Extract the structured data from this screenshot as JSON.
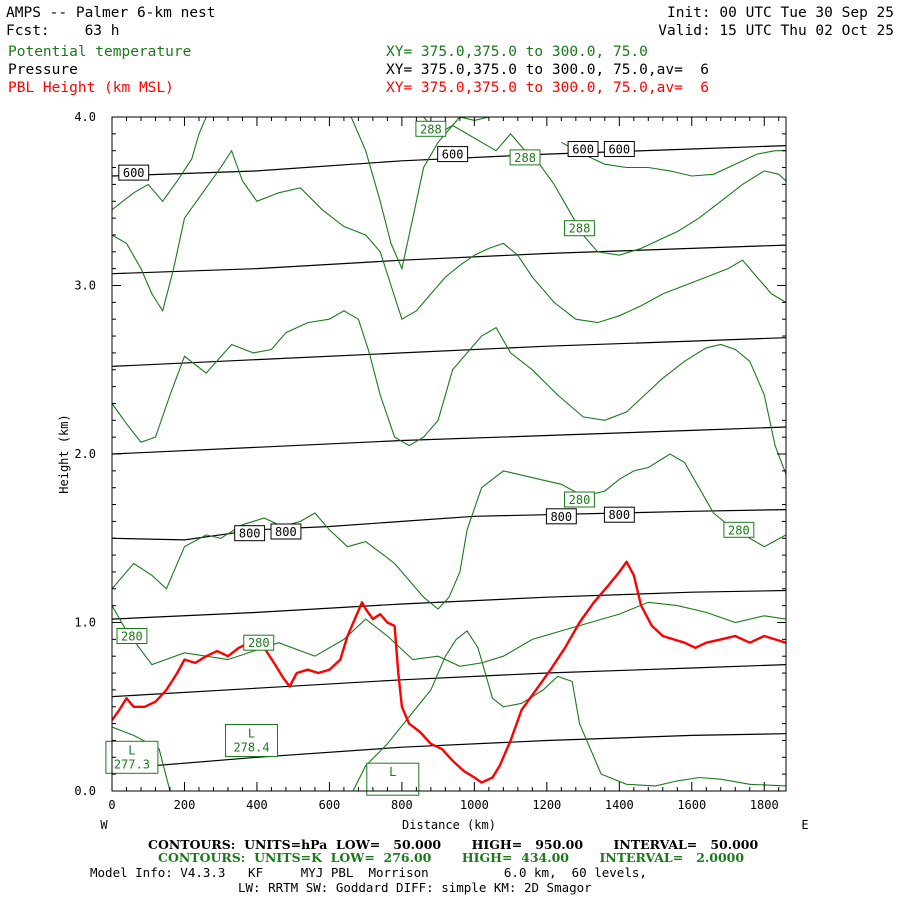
{
  "header": {
    "model_line": "AMPS -- Palmer 6-km nest",
    "init_line": "Init: 00 UTC Tue 30 Sep 25",
    "fcst_line": "Fcst:    63 h",
    "valid_line": "Valid: 15 UTC Thu 02 Oct 25",
    "fields": [
      {
        "name": "Potential temperature",
        "xy": "XY= 375.0,375.0 to 300.0, 75.0",
        "color": "#1a7a1a"
      },
      {
        "name": "Pressure",
        "xy": "XY= 375.0,375.0 to 300.0, 75.0,av=  6",
        "color": "#000000"
      },
      {
        "name": "PBL Height (km MSL)",
        "xy": "XY= 375.0,375.0 to 300.0, 75.0,av=  6",
        "color": "#ff0000"
      }
    ]
  },
  "footer": {
    "contours_pressure": "CONTOURS:  UNITS=hPa  LOW=   50.000       HIGH=   950.00       INTERVAL=   50.000",
    "contours_theta": "CONTOURS:  UNITS=K  LOW=  276.00       HIGH=  434.00       INTERVAL=   2.0000",
    "model_info_1": "Model Info: V4.3.3   KF     MYJ PBL  Morrison          6.0 km,  60 levels,",
    "model_info_2": "LW: RRTM SW: Goddard DIFF: simple KM: 2D Smagor"
  },
  "chart_data": {
    "type": "line",
    "xlabel": "Distance (km)",
    "ylabel": "Height (km)",
    "west_label": "W",
    "east_label": "E",
    "xlim": [
      0,
      1860
    ],
    "ylim": [
      0,
      4.0
    ],
    "xticks": [
      0,
      200,
      400,
      600,
      800,
      1000,
      1200,
      1400,
      1600,
      1800
    ],
    "yticks": [
      "0.0",
      "1.0",
      "2.0",
      "3.0",
      "4.0"
    ],
    "colors": {
      "pressure": "#000000",
      "theta": "#1a7a1a",
      "pbl": "#ff0000"
    },
    "pressure_contours": [
      {
        "x": [
          0,
          400,
          800,
          1200,
          1600,
          1860
        ],
        "y": [
          0.13,
          0.2,
          0.26,
          0.3,
          0.33,
          0.34
        ]
      },
      {
        "x": [
          0,
          400,
          800,
          1200,
          1600,
          1860
        ],
        "y": [
          0.56,
          0.61,
          0.66,
          0.7,
          0.73,
          0.75
        ]
      },
      {
        "x": [
          0,
          400,
          800,
          1200,
          1600,
          1860
        ],
        "y": [
          1.02,
          1.06,
          1.11,
          1.15,
          1.18,
          1.19
        ]
      },
      {
        "x": [
          0,
          200,
          400,
          600,
          800,
          1000,
          1200,
          1400,
          1600,
          1860
        ],
        "y": [
          1.5,
          1.49,
          1.55,
          1.57,
          1.6,
          1.63,
          1.64,
          1.65,
          1.66,
          1.67
        ]
      },
      {
        "x": [
          0,
          400,
          800,
          1200,
          1600,
          1860
        ],
        "y": [
          2.0,
          2.04,
          2.08,
          2.11,
          2.14,
          2.16
        ]
      },
      {
        "x": [
          0,
          400,
          800,
          1200,
          1600,
          1860
        ],
        "y": [
          2.52,
          2.56,
          2.6,
          2.64,
          2.67,
          2.69
        ]
      },
      {
        "x": [
          0,
          400,
          800,
          1200,
          1600,
          1860
        ],
        "y": [
          3.07,
          3.1,
          3.15,
          3.19,
          3.22,
          3.24
        ]
      },
      {
        "x": [
          0,
          400,
          800,
          1200,
          1600,
          1860
        ],
        "y": [
          3.65,
          3.68,
          3.74,
          3.78,
          3.81,
          3.83
        ]
      }
    ],
    "pressure_labels": [
      {
        "text": "600",
        "x": 60,
        "y": 3.67
      },
      {
        "text": "600",
        "x": 940,
        "y": 3.78
      },
      {
        "text": "600",
        "x": 1300,
        "y": 3.81
      },
      {
        "text": "600",
        "x": 1400,
        "y": 3.81
      },
      {
        "text": "800",
        "x": 380,
        "y": 1.53
      },
      {
        "text": "800",
        "x": 480,
        "y": 1.54
      },
      {
        "text": "800",
        "x": 1240,
        "y": 1.63
      },
      {
        "text": "800",
        "x": 1400,
        "y": 1.64
      }
    ],
    "theta_contours": [
      {
        "x": [
          0,
          60,
          130,
          160
        ],
        "y": [
          0.38,
          0.33,
          0.25,
          0.0
        ]
      },
      {
        "x": [
          665,
          700,
          760,
          820,
          880,
          920,
          950,
          980,
          1010,
          1050,
          1080,
          1130,
          1190,
          1230,
          1270,
          1290,
          1350,
          1420,
          1500,
          1560,
          1620,
          1680,
          1760,
          1860
        ],
        "y": [
          0.0,
          0.15,
          0.28,
          0.44,
          0.6,
          0.8,
          0.9,
          0.95,
          0.85,
          0.55,
          0.5,
          0.52,
          0.6,
          0.68,
          0.65,
          0.4,
          0.1,
          0.04,
          0.03,
          0.06,
          0.08,
          0.07,
          0.04,
          0.03
        ]
      },
      {
        "x": [
          0,
          40,
          110,
          200,
          320,
          460,
          560,
          640,
          700,
          760,
          830,
          900,
          960,
          1020,
          1080,
          1160,
          1240,
          1320,
          1400,
          1480,
          1560,
          1640,
          1720,
          1800,
          1860
        ],
        "y": [
          1.1,
          0.95,
          0.75,
          0.82,
          0.78,
          0.88,
          0.8,
          0.9,
          1.02,
          0.92,
          0.78,
          0.8,
          0.74,
          0.76,
          0.8,
          0.9,
          0.95,
          1.0,
          1.05,
          1.12,
          1.1,
          1.06,
          1.0,
          1.04,
          1.02
        ]
      },
      {
        "x": [
          0,
          60,
          110,
          150,
          200,
          260,
          300,
          360,
          420,
          470,
          520,
          560,
          600,
          650,
          700,
          750,
          780,
          820,
          860,
          900,
          930,
          960,
          980,
          1020,
          1080,
          1120,
          1180,
          1240,
          1300,
          1360,
          1400,
          1440,
          1480,
          1540,
          1580,
          1620,
          1660,
          1700,
          1760,
          1800,
          1860
        ],
        "y": [
          1.2,
          1.35,
          1.28,
          1.2,
          1.45,
          1.52,
          1.5,
          1.58,
          1.62,
          1.57,
          1.6,
          1.65,
          1.55,
          1.45,
          1.48,
          1.4,
          1.35,
          1.25,
          1.15,
          1.08,
          1.15,
          1.3,
          1.55,
          1.8,
          1.9,
          1.88,
          1.85,
          1.82,
          1.75,
          1.78,
          1.85,
          1.9,
          1.92,
          2.0,
          1.95,
          1.8,
          1.65,
          1.58,
          1.5,
          1.45,
          1.52
        ]
      },
      {
        "x": [
          0,
          40,
          80,
          120,
          160,
          200,
          260,
          330,
          390,
          440,
          480,
          540,
          600,
          640,
          680,
          710,
          740,
          780,
          820,
          860,
          900,
          940,
          980,
          1020,
          1060,
          1100,
          1160,
          1230,
          1300,
          1360,
          1420,
          1470,
          1520,
          1580,
          1640,
          1680,
          1720,
          1760,
          1800,
          1830,
          1860
        ],
        "y": [
          2.3,
          2.18,
          2.07,
          2.1,
          2.35,
          2.58,
          2.48,
          2.65,
          2.6,
          2.62,
          2.72,
          2.78,
          2.8,
          2.85,
          2.8,
          2.6,
          2.35,
          2.1,
          2.05,
          2.1,
          2.2,
          2.5,
          2.6,
          2.7,
          2.75,
          2.6,
          2.5,
          2.35,
          2.22,
          2.2,
          2.25,
          2.35,
          2.45,
          2.55,
          2.63,
          2.65,
          2.62,
          2.55,
          2.35,
          2.05,
          1.88
        ]
      },
      {
        "x": [
          0,
          40,
          80,
          110,
          140,
          170,
          200,
          250,
          300,
          330,
          360,
          400,
          460,
          520,
          580,
          640,
          700,
          740,
          770,
          800,
          840,
          880,
          920,
          960,
          1000,
          1040,
          1080,
          1120,
          1160,
          1220,
          1280,
          1340,
          1400,
          1460,
          1520,
          1580,
          1640,
          1700,
          1740,
          1780,
          1820,
          1860
        ],
        "y": [
          3.3,
          3.25,
          3.1,
          2.95,
          2.85,
          3.1,
          3.4,
          3.55,
          3.7,
          3.8,
          3.62,
          3.5,
          3.55,
          3.58,
          3.45,
          3.35,
          3.3,
          3.2,
          3.0,
          2.8,
          2.85,
          2.95,
          3.05,
          3.12,
          3.18,
          3.22,
          3.25,
          3.18,
          3.05,
          2.9,
          2.8,
          2.78,
          2.82,
          2.88,
          2.95,
          3.0,
          3.05,
          3.1,
          3.15,
          3.05,
          2.95,
          2.9
        ]
      },
      {
        "x": [
          0,
          60,
          100,
          140,
          180,
          220,
          240,
          260,
          280
        ],
        "y": [
          3.45,
          3.55,
          3.6,
          3.5,
          3.62,
          3.75,
          3.9,
          4.0,
          4.0
        ]
      },
      {
        "x": [
          660,
          700,
          740,
          770,
          800,
          830,
          860,
          900,
          940,
          980,
          1020,
          1060,
          1100,
          1140,
          1180,
          1220,
          1260,
          1300,
          1340,
          1400,
          1460,
          1520,
          1560,
          1620,
          1680,
          1740,
          1800,
          1840,
          1860
        ],
        "y": [
          4.0,
          3.8,
          3.5,
          3.25,
          3.1,
          3.4,
          3.7,
          3.85,
          3.95,
          3.9,
          3.85,
          3.8,
          3.9,
          3.8,
          3.72,
          3.6,
          3.45,
          3.3,
          3.2,
          3.18,
          3.22,
          3.28,
          3.32,
          3.4,
          3.5,
          3.6,
          3.68,
          3.66,
          3.62
        ]
      },
      {
        "x": [
          860,
          900,
          940,
          960,
          1000,
          1040,
          1080
        ],
        "y": [
          4.0,
          3.9,
          3.95,
          4.0,
          3.98,
          4.0,
          4.0
        ]
      },
      {
        "x": [
          1240,
          1300,
          1360,
          1420,
          1480,
          1540,
          1600,
          1660,
          1720,
          1780,
          1830,
          1860
        ],
        "y": [
          3.85,
          3.78,
          3.72,
          3.7,
          3.7,
          3.68,
          3.65,
          3.66,
          3.72,
          3.78,
          3.8,
          3.8
        ]
      }
    ],
    "theta_labels": [
      {
        "text": "288",
        "x": 880,
        "y": 3.93
      },
      {
        "text": "288",
        "x": 1140,
        "y": 3.76
      },
      {
        "text": "288",
        "x": 1290,
        "y": 3.34
      },
      {
        "text": "280",
        "x": 1290,
        "y": 1.73
      },
      {
        "text": "280",
        "x": 1730,
        "y": 1.55
      },
      {
        "text": "280",
        "x": 55,
        "y": 0.92
      },
      {
        "text": "280",
        "x": 405,
        "y": 0.88
      }
    ],
    "low_markers": [
      {
        "letter": "L",
        "value": "277.3",
        "x": 55,
        "y": 0.2
      },
      {
        "letter": "L",
        "value": "278.4",
        "x": 385,
        "y": 0.3
      },
      {
        "letter": "L",
        "value": "",
        "x": 775,
        "y": 0.07
      }
    ],
    "pbl_height": {
      "x": [
        0,
        20,
        40,
        60,
        90,
        120,
        150,
        180,
        200,
        230,
        260,
        290,
        320,
        350,
        380,
        400,
        420,
        450,
        470,
        490,
        510,
        540,
        570,
        600,
        630,
        650,
        670,
        690,
        700,
        720,
        740,
        760,
        780,
        790,
        800,
        820,
        850,
        880,
        910,
        940,
        970,
        1000,
        1020,
        1050,
        1070,
        1100,
        1130,
        1170,
        1210,
        1250,
        1290,
        1330,
        1370,
        1400,
        1420,
        1440,
        1460,
        1490,
        1520,
        1550,
        1580,
        1610,
        1640,
        1680,
        1720,
        1760,
        1800,
        1830,
        1860
      ],
      "y": [
        0.42,
        0.48,
        0.55,
        0.5,
        0.5,
        0.53,
        0.6,
        0.7,
        0.78,
        0.76,
        0.8,
        0.83,
        0.8,
        0.85,
        0.88,
        0.92,
        0.85,
        0.75,
        0.68,
        0.62,
        0.7,
        0.72,
        0.7,
        0.72,
        0.78,
        0.92,
        1.02,
        1.12,
        1.08,
        1.02,
        1.05,
        1.0,
        0.98,
        0.7,
        0.5,
        0.4,
        0.35,
        0.28,
        0.25,
        0.18,
        0.12,
        0.08,
        0.05,
        0.08,
        0.15,
        0.3,
        0.48,
        0.6,
        0.72,
        0.85,
        1.0,
        1.12,
        1.22,
        1.3,
        1.36,
        1.28,
        1.1,
        0.98,
        0.92,
        0.9,
        0.88,
        0.85,
        0.88,
        0.9,
        0.92,
        0.88,
        0.92,
        0.9,
        0.88
      ]
    }
  }
}
